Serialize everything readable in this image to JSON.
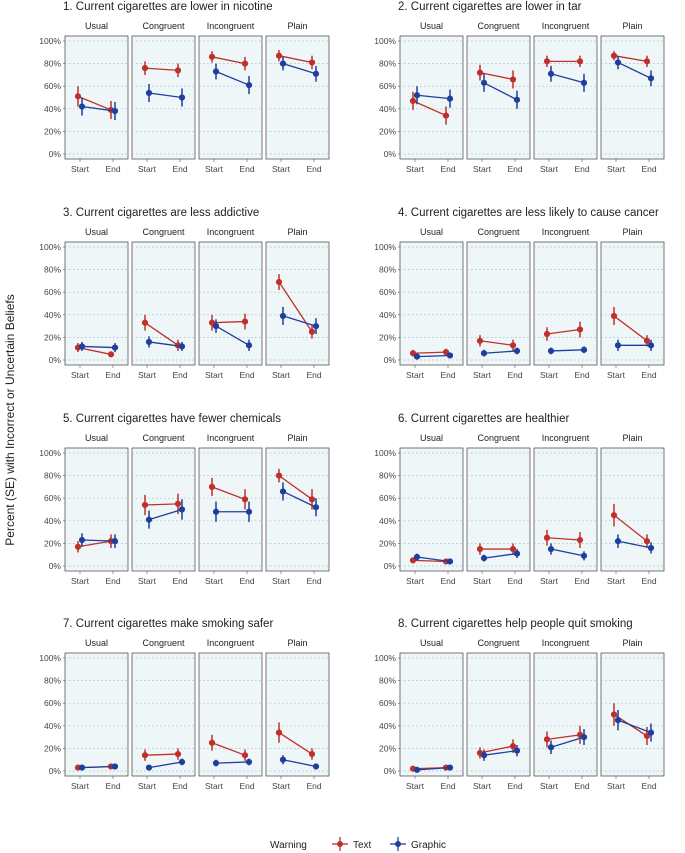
{
  "figure": {
    "ylabel": "Percent (SE) with Incorrect or Uncertain Beliefs",
    "legend": {
      "title": "Warning",
      "placement": "bottom"
    }
  },
  "chart_data": {
    "type": "line",
    "facets": [
      "Usual",
      "Congruent",
      "Incongruent",
      "Plain"
    ],
    "x": [
      "Start",
      "End"
    ],
    "y_ticks": [
      "0%",
      "20%",
      "40%",
      "60%",
      "80%",
      "100%"
    ],
    "ylim": [
      0,
      100
    ],
    "grid": true,
    "colors": {
      "Text": "#c0302b",
      "Graphic": "#1f3f9c",
      "panel_bg": "#eef6f8",
      "grid": "#9fb8c8"
    },
    "series_names": [
      "Text",
      "Graphic"
    ],
    "panels": [
      {
        "title": "1. Current cigarettes are lower in nicotine",
        "facets": [
          {
            "facet": "Usual",
            "Text": {
              "values": [
                51,
                39
              ],
              "se": [
                9,
                8
              ]
            },
            "Graphic": {
              "values": [
                42,
                38
              ],
              "se": [
                8,
                8
              ]
            }
          },
          {
            "facet": "Congruent",
            "Text": {
              "values": [
                76,
                74
              ],
              "se": [
                6,
                6
              ]
            },
            "Graphic": {
              "values": [
                54,
                50
              ],
              "se": [
                8,
                8
              ]
            }
          },
          {
            "facet": "Incongruent",
            "Text": {
              "values": [
                86,
                80
              ],
              "se": [
                5,
                6
              ]
            },
            "Graphic": {
              "values": [
                73,
                61
              ],
              "se": [
                7,
                8
              ]
            }
          },
          {
            "facet": "Plain",
            "Text": {
              "values": [
                87,
                81
              ],
              "se": [
                5,
                6
              ]
            },
            "Graphic": {
              "values": [
                80,
                71
              ],
              "se": [
                6,
                7
              ]
            }
          }
        ]
      },
      {
        "title": "2. Current cigarettes are lower in tar",
        "facets": [
          {
            "facet": "Usual",
            "Text": {
              "values": [
                47,
                34
              ],
              "se": [
                8,
                8
              ]
            },
            "Graphic": {
              "values": [
                52,
                49
              ],
              "se": [
                8,
                8
              ]
            }
          },
          {
            "facet": "Congruent",
            "Text": {
              "values": [
                72,
                66
              ],
              "se": [
                7,
                8
              ]
            },
            "Graphic": {
              "values": [
                63,
                48
              ],
              "se": [
                8,
                8
              ]
            }
          },
          {
            "facet": "Incongruent",
            "Text": {
              "values": [
                82,
                82
              ],
              "se": [
                5,
                5
              ]
            },
            "Graphic": {
              "values": [
                71,
                63
              ],
              "se": [
                7,
                8
              ]
            }
          },
          {
            "facet": "Plain",
            "Text": {
              "values": [
                87,
                82
              ],
              "se": [
                4,
                5
              ]
            },
            "Graphic": {
              "values": [
                81,
                67
              ],
              "se": [
                6,
                7
              ]
            }
          }
        ]
      },
      {
        "title": "3. Current cigarettes are less addictive",
        "facets": [
          {
            "facet": "Usual",
            "Text": {
              "values": [
                11,
                5
              ],
              "se": [
                4,
                2
              ]
            },
            "Graphic": {
              "values": [
                12,
                11
              ],
              "se": [
                4,
                4
              ]
            }
          },
          {
            "facet": "Congruent",
            "Text": {
              "values": [
                33,
                13
              ],
              "se": [
                7,
                5
              ]
            },
            "Graphic": {
              "values": [
                16,
                12
              ],
              "se": [
                5,
                4
              ]
            }
          },
          {
            "facet": "Incongruent",
            "Text": {
              "values": [
                33,
                34
              ],
              "se": [
                7,
                7
              ]
            },
            "Graphic": {
              "values": [
                30,
                13
              ],
              "se": [
                6,
                5
              ]
            }
          },
          {
            "facet": "Plain",
            "Text": {
              "values": [
                69,
                25
              ],
              "se": [
                7,
                6
              ]
            },
            "Graphic": {
              "values": [
                39,
                30
              ],
              "se": [
                8,
                7
              ]
            }
          }
        ]
      },
      {
        "title": "4. Current cigarettes are less likely to cause cancer",
        "facets": [
          {
            "facet": "Usual",
            "Text": {
              "values": [
                6,
                7
              ],
              "se": [
                3,
                3
              ]
            },
            "Graphic": {
              "values": [
                3,
                4
              ],
              "se": [
                2,
                2
              ]
            }
          },
          {
            "facet": "Congruent",
            "Text": {
              "values": [
                17,
                13
              ],
              "se": [
                5,
                5
              ]
            },
            "Graphic": {
              "values": [
                6,
                8
              ],
              "se": [
                3,
                3
              ]
            }
          },
          {
            "facet": "Incongruent",
            "Text": {
              "values": [
                23,
                27
              ],
              "se": [
                6,
                7
              ]
            },
            "Graphic": {
              "values": [
                8,
                9
              ],
              "se": [
                3,
                3
              ]
            }
          },
          {
            "facet": "Plain",
            "Text": {
              "values": [
                39,
                17
              ],
              "se": [
                8,
                5
              ]
            },
            "Graphic": {
              "values": [
                13,
                13
              ],
              "se": [
                5,
                5
              ]
            }
          }
        ]
      },
      {
        "title": "5. Current cigarettes have fewer chemicals",
        "facets": [
          {
            "facet": "Usual",
            "Text": {
              "values": [
                17,
                22
              ],
              "se": [
                5,
                6
              ]
            },
            "Graphic": {
              "values": [
                23,
                22
              ],
              "se": [
                6,
                6
              ]
            }
          },
          {
            "facet": "Congruent",
            "Text": {
              "values": [
                54,
                55
              ],
              "se": [
                9,
                9
              ]
            },
            "Graphic": {
              "values": [
                41,
                50
              ],
              "se": [
                8,
                9
              ]
            }
          },
          {
            "facet": "Incongruent",
            "Text": {
              "values": [
                70,
                59
              ],
              "se": [
                8,
                9
              ]
            },
            "Graphic": {
              "values": [
                48,
                48
              ],
              "se": [
                9,
                9
              ]
            }
          },
          {
            "facet": "Plain",
            "Text": {
              "values": [
                80,
                59
              ],
              "se": [
                6,
                9
              ]
            },
            "Graphic": {
              "values": [
                66,
                52
              ],
              "se": [
                8,
                8
              ]
            }
          }
        ]
      },
      {
        "title": "6. Current cigarettes are healthier",
        "facets": [
          {
            "facet": "Usual",
            "Text": {
              "values": [
                5,
                4
              ],
              "se": [
                2,
                2
              ]
            },
            "Graphic": {
              "values": [
                8,
                4
              ],
              "se": [
                3,
                2
              ]
            }
          },
          {
            "facet": "Congruent",
            "Text": {
              "values": [
                15,
                15
              ],
              "se": [
                5,
                5
              ]
            },
            "Graphic": {
              "values": [
                7,
                11
              ],
              "se": [
                3,
                4
              ]
            }
          },
          {
            "facet": "Incongruent",
            "Text": {
              "values": [
                25,
                23
              ],
              "se": [
                7,
                7
              ]
            },
            "Graphic": {
              "values": [
                15,
                9
              ],
              "se": [
                5,
                4
              ]
            }
          },
          {
            "facet": "Plain",
            "Text": {
              "values": [
                45,
                22
              ],
              "se": [
                10,
                6
              ]
            },
            "Graphic": {
              "values": [
                22,
                16
              ],
              "se": [
                6,
                5
              ]
            }
          }
        ]
      },
      {
        "title": "7. Current cigarettes make smoking safer",
        "facets": [
          {
            "facet": "Usual",
            "Text": {
              "values": [
                3,
                4
              ],
              "se": [
                1,
                2
              ]
            },
            "Graphic": {
              "values": [
                3,
                4
              ],
              "se": [
                1,
                2
              ]
            }
          },
          {
            "facet": "Congruent",
            "Text": {
              "values": [
                14,
                15
              ],
              "se": [
                5,
                5
              ]
            },
            "Graphic": {
              "values": [
                3,
                8
              ],
              "se": [
                1,
                3
              ]
            }
          },
          {
            "facet": "Incongruent",
            "Text": {
              "values": [
                25,
                14
              ],
              "se": [
                7,
                5
              ]
            },
            "Graphic": {
              "values": [
                7,
                8
              ],
              "se": [
                3,
                3
              ]
            }
          },
          {
            "facet": "Plain",
            "Text": {
              "values": [
                34,
                15
              ],
              "se": [
                9,
                5
              ]
            },
            "Graphic": {
              "values": [
                10,
                4
              ],
              "se": [
                4,
                2
              ]
            }
          }
        ]
      },
      {
        "title": "8. Current cigarettes help people quit smoking",
        "facets": [
          {
            "facet": "Usual",
            "Text": {
              "values": [
                2,
                3
              ],
              "se": [
                1,
                1
              ]
            },
            "Graphic": {
              "values": [
                1,
                3
              ],
              "se": [
                1,
                1
              ]
            }
          },
          {
            "facet": "Congruent",
            "Text": {
              "values": [
                16,
                22
              ],
              "se": [
                5,
                6
              ]
            },
            "Graphic": {
              "values": [
                14,
                18
              ],
              "se": [
                5,
                5
              ]
            }
          },
          {
            "facet": "Incongruent",
            "Text": {
              "values": [
                28,
                32
              ],
              "se": [
                7,
                8
              ]
            },
            "Graphic": {
              "values": [
                21,
                30
              ],
              "se": [
                6,
                7
              ]
            }
          },
          {
            "facet": "Plain",
            "Text": {
              "values": [
                50,
                31
              ],
              "se": [
                10,
                8
              ]
            },
            "Graphic": {
              "values": [
                45,
                34
              ],
              "se": [
                9,
                8
              ]
            }
          }
        ]
      }
    ]
  }
}
